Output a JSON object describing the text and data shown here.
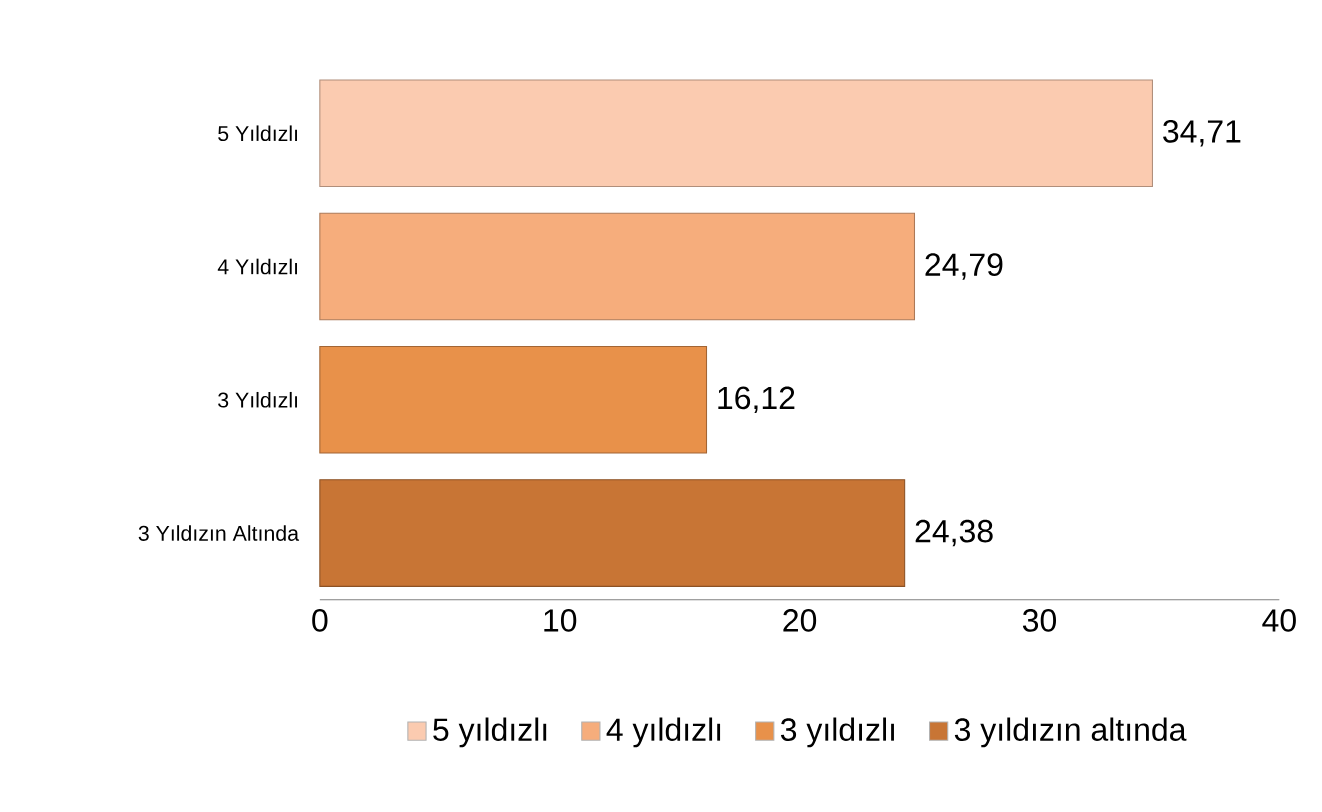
{
  "chart_data": {
    "type": "bar",
    "orientation": "horizontal",
    "categories": [
      "5 Yıldızlı",
      "4 Yıldızlı",
      "3 Yıldızlı",
      "3 Yıldızın Altında"
    ],
    "series": [
      {
        "name": "5 yıldızlı",
        "color": "#fbcbb0",
        "values": [
          34.71,
          null,
          null,
          null
        ],
        "value_labels": [
          "34,71",
          null,
          null,
          null
        ]
      },
      {
        "name": "4 yıldızlı",
        "color": "#f6ad7c",
        "values": [
          null,
          24.79,
          null,
          null
        ],
        "value_labels": [
          null,
          "24,79",
          null,
          null
        ]
      },
      {
        "name": "3 yıldızlı",
        "color": "#e8914a",
        "values": [
          null,
          null,
          16.12,
          null
        ],
        "value_labels": [
          null,
          null,
          "16,12",
          null
        ]
      },
      {
        "name": "3 yıldızın altında",
        "color": "#c87535",
        "values": [
          null,
          null,
          null,
          24.38
        ],
        "value_labels": [
          null,
          null,
          null,
          "24,38"
        ]
      }
    ],
    "xlim": [
      0,
      40
    ],
    "xticks": [
      0,
      10,
      20,
      30,
      40
    ],
    "legend": "bottom"
  }
}
